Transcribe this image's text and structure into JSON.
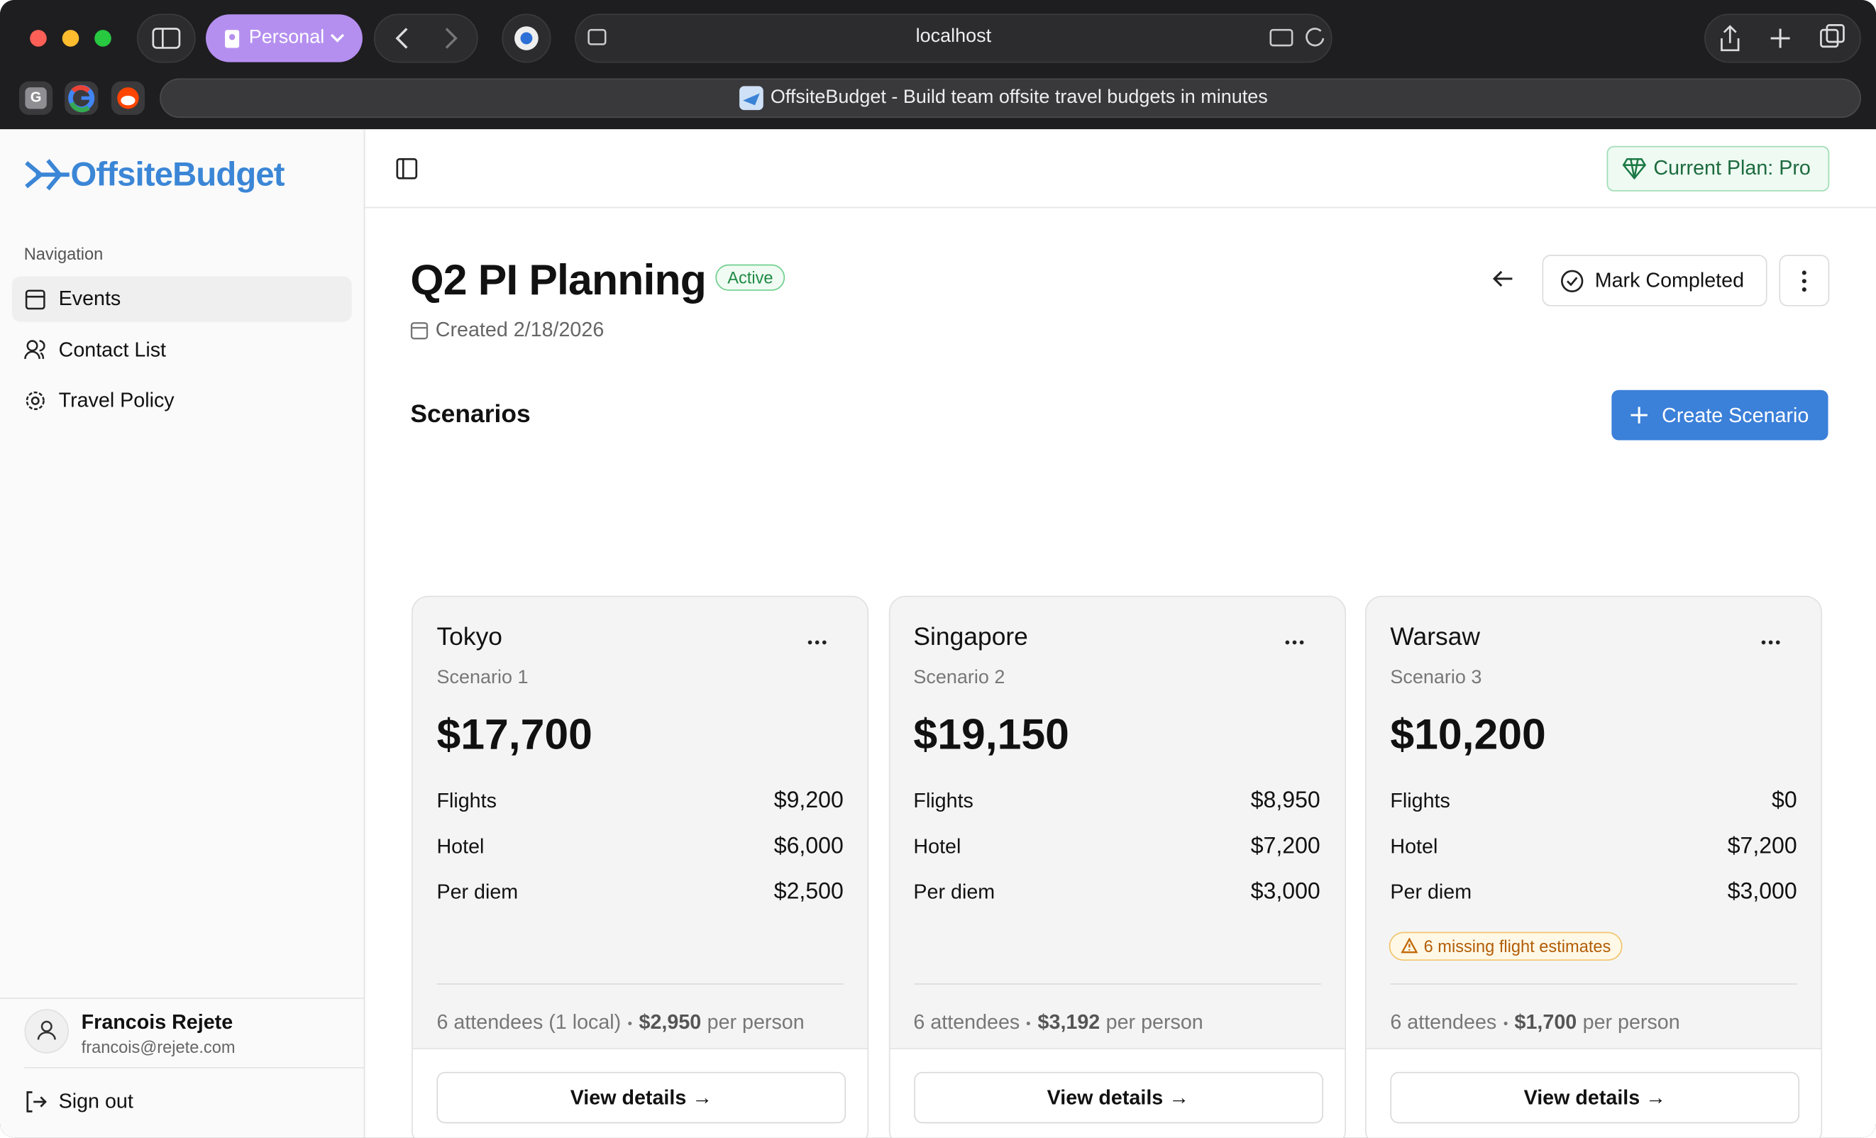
{
  "browser": {
    "profile": "Personal",
    "url": "localhost",
    "pinned_tab_letter": "G",
    "tab_title": "OffsiteBudget - Build team offsite travel budgets in minutes"
  },
  "sidebar": {
    "logo": "OffsiteBudget",
    "section": "Navigation",
    "items": [
      "Events",
      "Contact List",
      "Travel Policy"
    ],
    "user": {
      "name": "Francois Rejete",
      "email": "francois@rejete.com"
    },
    "sign_out": "Sign out"
  },
  "header": {
    "plan": "Current Plan: Pro"
  },
  "event": {
    "title": "Q2 PI Planning",
    "status": "Active",
    "created": "Created 2/18/2026",
    "mark_completed": "Mark Completed"
  },
  "scenarios": {
    "heading": "Scenarios",
    "create": "Create Scenario",
    "cards": [
      {
        "name": "Tokyo",
        "label": "Scenario 1",
        "total": "$17,700",
        "rows": [
          [
            "Flights",
            "$9,200"
          ],
          [
            "Hotel",
            "$6,000"
          ],
          [
            "Per diem",
            "$2,500"
          ]
        ],
        "warning": null,
        "attendees": "6 attendees (1 local)",
        "per_person": "$2,950",
        "per_person_label": "per person",
        "action": "View details →"
      },
      {
        "name": "Singapore",
        "label": "Scenario 2",
        "total": "$19,150",
        "rows": [
          [
            "Flights",
            "$8,950"
          ],
          [
            "Hotel",
            "$7,200"
          ],
          [
            "Per diem",
            "$3,000"
          ]
        ],
        "warning": null,
        "attendees": "6 attendees",
        "per_person": "$3,192",
        "per_person_label": "per person",
        "action": "View details →"
      },
      {
        "name": "Warsaw",
        "label": "Scenario 3",
        "total": "$10,200",
        "rows": [
          [
            "Flights",
            "$0"
          ],
          [
            "Hotel",
            "$7,200"
          ],
          [
            "Per diem",
            "$3,000"
          ]
        ],
        "warning": "6 missing flight estimates",
        "attendees": "6 attendees",
        "per_person": "$1,700",
        "per_person_label": "per person",
        "action": "View details →"
      }
    ]
  }
}
